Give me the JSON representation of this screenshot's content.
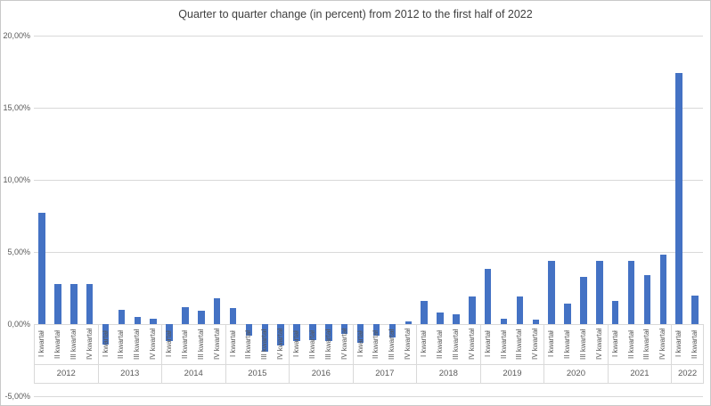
{
  "chart_data": {
    "type": "bar",
    "title": "Quarter to quarter change (in percent) from 2012 to the first half of 2022",
    "xlabel": "",
    "ylabel": "",
    "ylim": [
      -5,
      20
    ],
    "grid": true,
    "legend": "none",
    "bar_color": "#4472C4",
    "gridline_color": "#D9D9D9",
    "axis_text_color": "#595959",
    "decimal_separator": ",",
    "y_axis": {
      "ticks": [
        {
          "value": 20,
          "label": "20,00%"
        },
        {
          "value": 15,
          "label": "15,00%"
        },
        {
          "value": 10,
          "label": "10,00%"
        },
        {
          "value": 5,
          "label": "5,00%"
        },
        {
          "value": 0,
          "label": "0,00%"
        },
        {
          "value": -5,
          "label": "-5,00%"
        }
      ]
    },
    "quarter_labels": [
      "I kwartał",
      "II kwartał",
      "III kwartał",
      "IV kwartał"
    ],
    "groups": [
      {
        "year": "2012",
        "values": [
          7.7,
          2.8,
          2.8,
          2.8
        ]
      },
      {
        "year": "2013",
        "values": [
          -1.4,
          1.0,
          0.5,
          0.4
        ]
      },
      {
        "year": "2014",
        "values": [
          -1.2,
          1.2,
          0.9,
          1.8
        ]
      },
      {
        "year": "2015",
        "values": [
          1.1,
          -0.8,
          -1.9,
          -1.5
        ]
      },
      {
        "year": "2016",
        "values": [
          -1.2,
          -1.1,
          -1.2,
          -0.7
        ]
      },
      {
        "year": "2017",
        "values": [
          -1.3,
          -0.8,
          -0.9,
          0.2
        ]
      },
      {
        "year": "2018",
        "values": [
          1.6,
          0.8,
          0.7,
          1.9
        ]
      },
      {
        "year": "2019",
        "values": [
          3.8,
          0.4,
          1.9,
          0.3
        ]
      },
      {
        "year": "2020",
        "values": [
          4.4,
          1.4,
          3.3,
          4.4
        ]
      },
      {
        "year": "2021",
        "values": [
          1.6,
          4.4,
          3.4,
          4.8
        ]
      },
      {
        "year": "2022",
        "values": [
          17.4,
          2.0
        ]
      }
    ]
  }
}
